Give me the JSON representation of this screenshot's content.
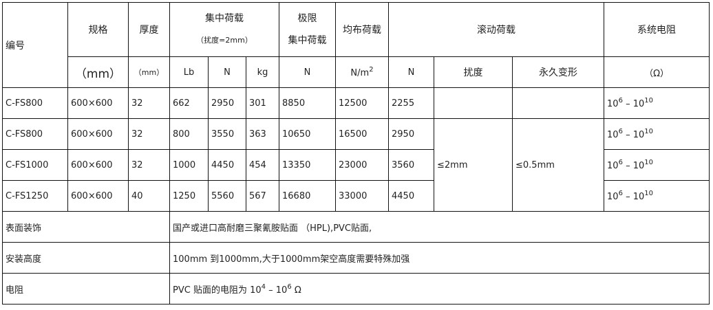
{
  "header": {
    "id": "编号",
    "spec": "规格",
    "thickness": "厚度",
    "conc_load": "集中荷载",
    "conc_load_note": "（扰度=2mm）",
    "ultimate_1": "极限",
    "ultimate_2": "集中荷载",
    "uniform_load": "均布荷载",
    "rolling_load": "滚动荷载",
    "resistance": "系统电阻"
  },
  "units": {
    "spec": "（mm）",
    "thickness": "（mm）",
    "lb": "Lb",
    "n": "N",
    "kg": "kg",
    "ult_n": "N",
    "uniform": "N/m",
    "uniform_sup": "2",
    "roll_n": "N",
    "roll_deflection": "扰度",
    "roll_perm": "永久变形",
    "ohm": "（Ω）"
  },
  "rows": [
    {
      "id": "C-FS800",
      "spec": "600×600",
      "thick": "32",
      "lb": "662",
      "n": "2950",
      "kg": "301",
      "ult": "8850",
      "uni": "12500",
      "roll": "2255",
      "res_base": "10",
      "res_exp1": "6",
      "res_dash": " – 10",
      "res_exp2": "10"
    },
    {
      "id": "C-FS800",
      "spec": "600×600",
      "thick": "32",
      "lb": "800",
      "n": "3550",
      "kg": "363",
      "ult": "10650",
      "uni": "16500",
      "roll": "2950",
      "res_base": "10",
      "res_exp1": "6",
      "res_dash": " – 10",
      "res_exp2": "10"
    },
    {
      "id": "C-FS1000",
      "spec": "600×600",
      "thick": "32",
      "lb": "1000",
      "n": "4450",
      "kg": "454",
      "ult": "13350",
      "uni": "23000",
      "roll": "3560",
      "res_base": "10",
      "res_exp1": "6",
      "res_dash": " – 10",
      "res_exp2": "10"
    },
    {
      "id": "C-FS1250",
      "spec": "600×600",
      "thick": "40",
      "lb": "1250",
      "n": "5560",
      "kg": "567",
      "ult": "16680",
      "uni": "33000",
      "roll": "4450",
      "res_base": "10",
      "res_exp1": "6",
      "res_dash": " – 10",
      "res_exp2": "10"
    }
  ],
  "merged": {
    "deflection": "≤2mm",
    "perm": "≤0.5mm"
  },
  "footer": [
    {
      "label": "表面装饰",
      "value": "国产或进口高耐磨三聚氰胺贴面 （HPL),PVC贴面,"
    },
    {
      "label": "安装高度",
      "value": "100mm 到1000mm,大于1000mm架空高度需要特殊加强"
    },
    {
      "label": "电阻",
      "value": "PVC 贴面的电阻为 10",
      "exp1": "4",
      "mid": " – 10",
      "exp2": "6",
      "tail": " Ω"
    }
  ]
}
